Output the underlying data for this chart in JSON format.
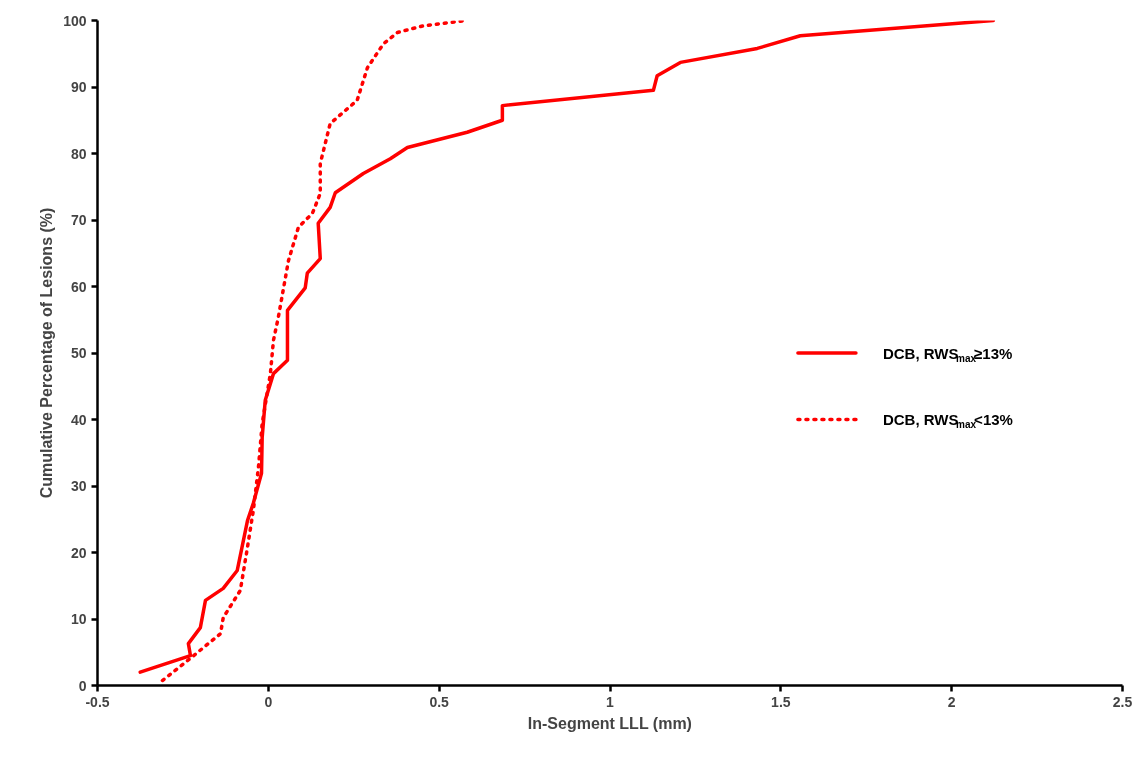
{
  "chart_data": {
    "type": "line",
    "xlabel": "In-Segment LLL (mm)",
    "ylabel": "Cumulative Percentage of Lesions (%)",
    "xlim": [
      -0.5,
      2.5
    ],
    "xticks": [
      -0.5,
      0,
      0.5,
      1,
      1.5,
      2,
      2.5
    ],
    "ylim": [
      0,
      100
    ],
    "yticks": [
      0,
      10,
      20,
      30,
      40,
      50,
      60,
      70,
      80,
      90,
      100
    ],
    "grid": false,
    "legend": "right",
    "marker": "none",
    "series": [
      {
        "name": "DCB, RWS$_{max}$≥13%",
        "color": "#ff0000",
        "line_style": "solid",
        "x": [
          -0.375,
          -0.228,
          -0.234,
          -0.199,
          -0.184,
          -0.132,
          -0.091,
          -0.061,
          -0.044,
          -0.02,
          -0.018,
          -0.009,
          0.015,
          0.056,
          0.056,
          0.056,
          0.108,
          0.114,
          0.152,
          0.146,
          0.181,
          0.196,
          0.278,
          0.357,
          0.407,
          0.582,
          0.685,
          0.685,
          1.127,
          1.138,
          1.206,
          1.431,
          1.557,
          2.122
        ],
        "values": [
          2.0,
          4.5,
          6.3,
          8.7,
          12.8,
          14.6,
          17.3,
          24.8,
          27.4,
          31.9,
          37.3,
          42.9,
          46.9,
          48.9,
          51.9,
          56.4,
          59.8,
          62.0,
          64.2,
          69.5,
          71.9,
          74.1,
          77.0,
          79.2,
          80.9,
          83.2,
          85.0,
          87.2,
          89.5,
          91.7,
          93.7,
          95.8,
          97.7,
          100
        ]
      },
      {
        "name": "DCB, RWS$_{max}$<13%",
        "color": "#ff0000",
        "line_style": "dotted",
        "x": [
          -0.31,
          -0.228,
          -0.14,
          -0.132,
          -0.082,
          -0.061,
          -0.044,
          -0.029,
          -0.018,
          0.006,
          0.015,
          0.029,
          0.059,
          0.088,
          0.129,
          0.152,
          0.152,
          0.181,
          0.26,
          0.29,
          0.337,
          0.378,
          0.454,
          0.577
        ],
        "values": [
          0.75,
          4.1,
          7.8,
          10.2,
          14.3,
          20.8,
          26.3,
          32.8,
          39.4,
          46.9,
          51.9,
          55.3,
          63.9,
          68.9,
          71.0,
          74.0,
          78.5,
          84.5,
          88.0,
          92.9,
          96.5,
          98.2,
          99.2,
          100
        ]
      }
    ]
  }
}
